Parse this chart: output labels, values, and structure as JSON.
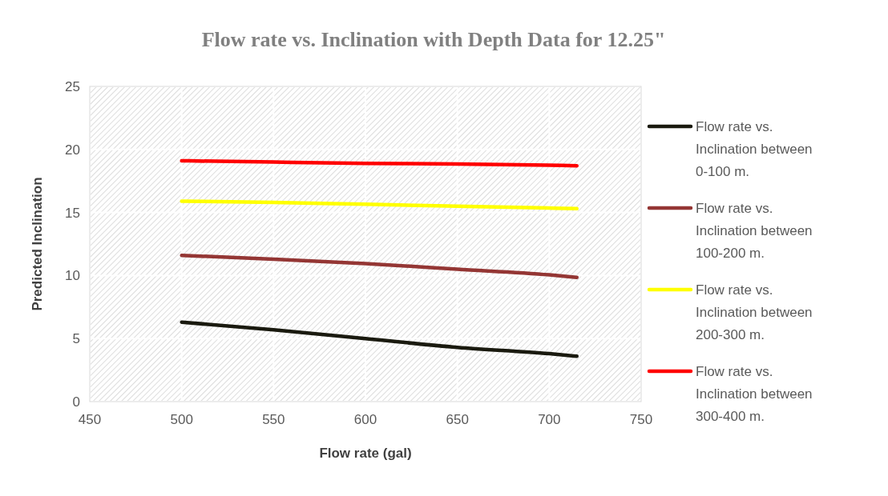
{
  "chart_data": {
    "type": "line",
    "title": "Flow rate vs. Inclination with Depth Data for 12.25\"",
    "xlabel": "Flow rate (gal)",
    "ylabel": "Predicted Inclination",
    "x": [
      500,
      550,
      600,
      650,
      700,
      715
    ],
    "series": [
      {
        "name": "Flow rate vs. Inclination between 0-100 m.",
        "color": "#1a1a0f",
        "values": [
          6.3,
          5.7,
          5.0,
          4.3,
          3.8,
          3.6
        ]
      },
      {
        "name": "Flow rate vs. Inclination between 100-200 m.",
        "color": "#943634",
        "values": [
          11.6,
          11.3,
          10.95,
          10.5,
          10.05,
          9.85
        ]
      },
      {
        "name": "Flow rate vs. Inclination between 200-300 m.",
        "color": "#ffff00",
        "values": [
          15.9,
          15.8,
          15.65,
          15.5,
          15.35,
          15.3
        ]
      },
      {
        "name": "Flow rate vs. Inclination between 300-400 m.",
        "color": "#ff0000",
        "values": [
          19.1,
          19.0,
          18.9,
          18.85,
          18.75,
          18.7
        ]
      }
    ],
    "xlim": [
      450,
      750
    ],
    "xticks": [
      450,
      500,
      550,
      600,
      650,
      700,
      750
    ],
    "ylim": [
      0,
      25
    ],
    "yticks": [
      0,
      5,
      10,
      15,
      20,
      25
    ],
    "grid": true,
    "legend": "right",
    "marker": "none",
    "line_style": "solid"
  }
}
